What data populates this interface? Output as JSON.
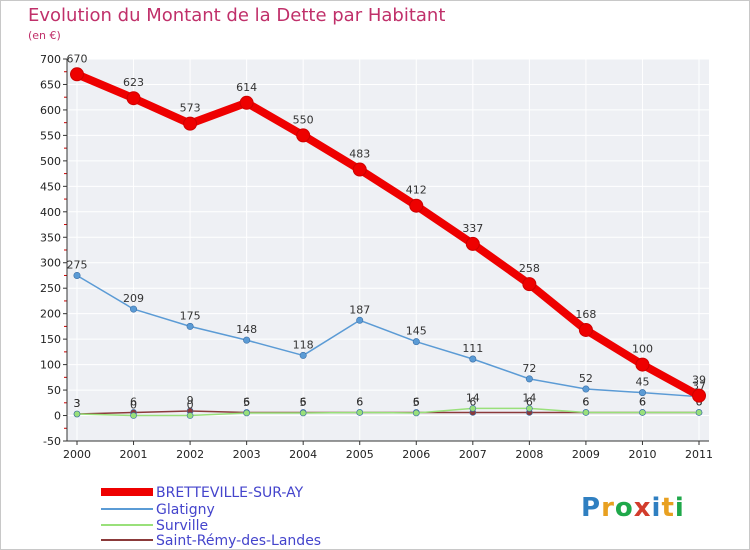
{
  "chart_data": {
    "type": "line",
    "title": "Evolution du Montant de la Dette par Habitant",
    "subtitle": "(en €)",
    "x": [
      "2000",
      "2001",
      "2002",
      "2003",
      "2004",
      "2005",
      "2006",
      "2007",
      "2008",
      "2009",
      "2010",
      "2011"
    ],
    "yticks": [
      "-50",
      "0",
      "50",
      "100",
      "150",
      "200",
      "250",
      "300",
      "350",
      "400",
      "450",
      "500",
      "550",
      "600",
      "650",
      "700"
    ],
    "ylim": [
      -50,
      700
    ],
    "legend_position": "bottom-left",
    "series": [
      {
        "name": "BRETTEVILLE-SUR-AY",
        "color": "#ee0000",
        "values": [
          670,
          623,
          573,
          614,
          550,
          483,
          412,
          337,
          258,
          168,
          100,
          39
        ],
        "labels": [
          "670",
          "623",
          "573",
          "614",
          "550",
          "483",
          "412",
          "337",
          "258",
          "168",
          "100",
          "39"
        ]
      },
      {
        "name": "Glatigny",
        "color": "#5b9bd5",
        "values": [
          275,
          209,
          175,
          148,
          118,
          187,
          145,
          111,
          72,
          52,
          45,
          37
        ],
        "labels": [
          "275",
          "209",
          "175",
          "148",
          "118",
          "187",
          "145",
          "111",
          "72",
          "52",
          "45",
          "37"
        ]
      },
      {
        "name": "Surville",
        "color": "#99e07a",
        "values": [
          3,
          0,
          0,
          5,
          5,
          6,
          5,
          14,
          14,
          6,
          6,
          6
        ],
        "labels": [
          "3",
          "0",
          "0",
          "5",
          "5",
          "6",
          "5",
          "14",
          "14",
          "6",
          "6",
          "6"
        ]
      },
      {
        "name": "Saint-Rémy-des-Landes",
        "color": "#8b3a3a",
        "values": [
          3,
          6,
          9,
          6,
          6,
          6,
          6,
          6,
          6,
          6,
          6,
          6
        ],
        "labels": [
          "3",
          "6",
          "9",
          "6",
          "6",
          "6",
          "6",
          "6",
          "6",
          "6",
          "6",
          "6"
        ]
      }
    ]
  },
  "logo": {
    "text": "Proxiti"
  }
}
